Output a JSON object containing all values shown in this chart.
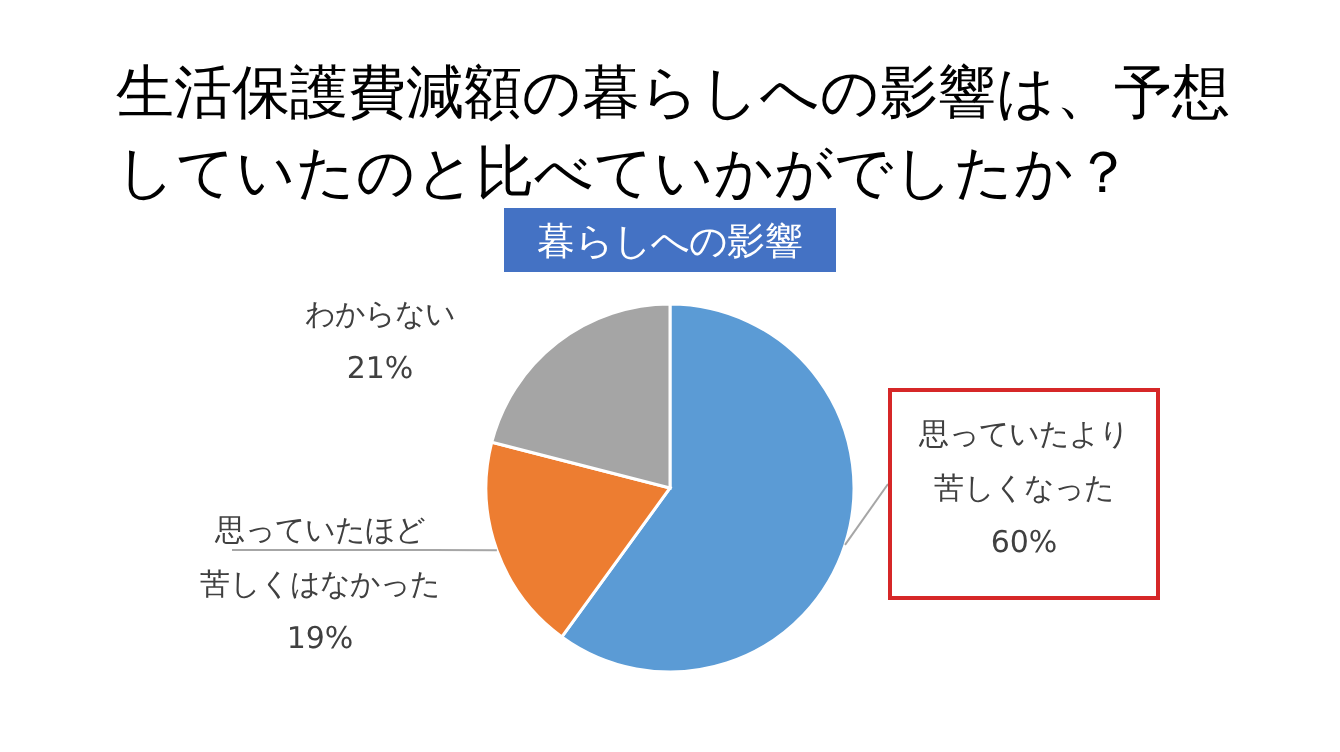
{
  "chart_data": {
    "type": "pie",
    "title": "生活保護費減額の暮らしへの影響は、予想していたのと比べていかがでしたか？",
    "subtitle": "暮らしへの影響",
    "categories": [
      "思っていたより苦しくなった",
      "思っていたほど苦しくはなかった",
      "わからない"
    ],
    "values": [
      60,
      19,
      21
    ],
    "colors": [
      "#5b9bd5",
      "#ed7d31",
      "#a5a5a5"
    ],
    "value_labels": [
      "60%",
      "19%",
      "21%"
    ]
  }
}
